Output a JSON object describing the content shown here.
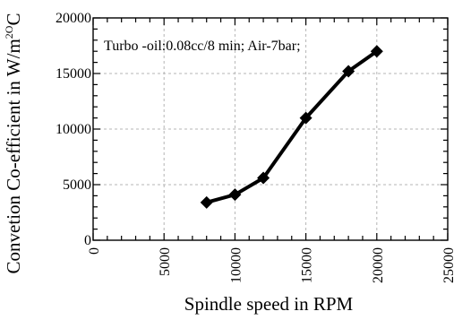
{
  "chart_data": {
    "type": "line",
    "title": "",
    "xlabel": "Spindle speed in RPM",
    "ylabel_main": "Convetion Co-efficient in W/m",
    "ylabel_sup1": "2",
    "ylabel_sup2": "O",
    "ylabel_tail": "C",
    "xlim": [
      0,
      25000
    ],
    "ylim": [
      0,
      20000
    ],
    "x_ticks": [
      "0",
      "5000",
      "10000",
      "15000",
      "20000",
      "25000"
    ],
    "y_ticks": [
      "0",
      "5000",
      "10000",
      "15000",
      "20000"
    ],
    "grid": true,
    "annotation": "Turbo -oil:0.08cc/8 min; Air-7bar;",
    "series": [
      {
        "x": [
          8000,
          10000,
          12000,
          15000,
          18000,
          20000
        ],
        "values": [
          3400,
          4100,
          5600,
          11000,
          15200,
          17000
        ],
        "marker": "diamond",
        "color": "#000000"
      }
    ]
  }
}
